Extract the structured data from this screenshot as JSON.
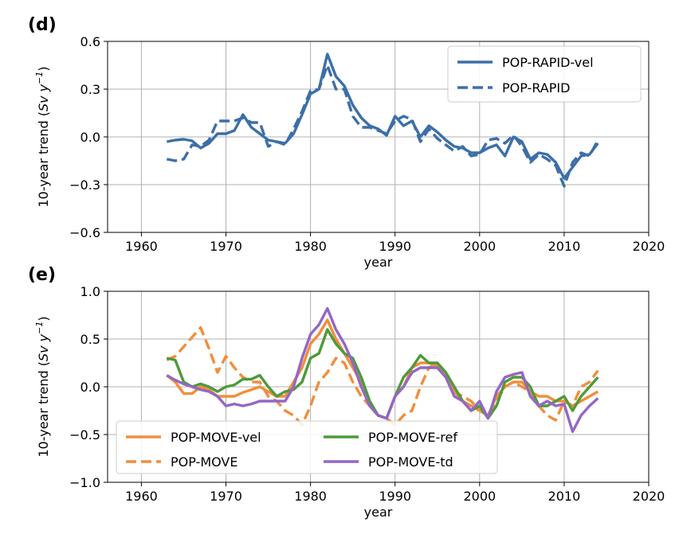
{
  "chart_data": [
    {
      "type": "line",
      "panel_label": "(d)",
      "xlabel": "year",
      "ylabel": "10-year trend (Sv y⁻¹)",
      "ylabel_parts": [
        "10-year trend (",
        "Sv y",
        "−1",
        ")"
      ],
      "xlim": [
        1956,
        2020
      ],
      "ylim": [
        -0.6,
        0.6
      ],
      "xticks": [
        1960,
        1970,
        1980,
        1990,
        2000,
        2010,
        2020
      ],
      "yticks": [
        -0.6,
        -0.3,
        0.0,
        0.3,
        0.6
      ],
      "ytick_labels": [
        "−0.6",
        "−0.3",
        "0.0",
        "0.3",
        "0.6"
      ],
      "grid": true,
      "legend_position": "top-right",
      "x": [
        1963,
        1964,
        1965,
        1966,
        1967,
        1968,
        1969,
        1970,
        1971,
        1972,
        1973,
        1974,
        1975,
        1976,
        1977,
        1978,
        1979,
        1980,
        1981,
        1982,
        1983,
        1984,
        1985,
        1986,
        1987,
        1988,
        1989,
        1990,
        1991,
        1992,
        1993,
        1994,
        1995,
        1996,
        1997,
        1998,
        1999,
        2000,
        2001,
        2002,
        2003,
        2004,
        2005,
        2006,
        2007,
        2008,
        2009,
        2010,
        2011,
        2012,
        2013,
        2014
      ],
      "series": [
        {
          "name": "POP-RAPID-vel",
          "color": "#3c6fa8",
          "dash": "solid",
          "values": [
            -0.03,
            -0.02,
            -0.015,
            -0.025,
            -0.07,
            -0.04,
            0.02,
            0.02,
            0.04,
            0.14,
            0.06,
            0.02,
            -0.02,
            -0.03,
            -0.04,
            0.02,
            0.14,
            0.27,
            0.3,
            0.52,
            0.38,
            0.32,
            0.2,
            0.12,
            0.07,
            0.05,
            0.01,
            0.13,
            0.07,
            0.1,
            0.0,
            0.07,
            0.03,
            -0.02,
            -0.06,
            -0.07,
            -0.1,
            -0.1,
            -0.07,
            -0.05,
            -0.12,
            0.0,
            -0.03,
            -0.14,
            -0.1,
            -0.11,
            -0.16,
            -0.26,
            -0.19,
            -0.12,
            -0.11,
            -0.04
          ]
        },
        {
          "name": "POP-RAPID",
          "color": "#3c6fa8",
          "dash": "dashed",
          "values": [
            -0.14,
            -0.15,
            -0.14,
            -0.05,
            -0.06,
            -0.02,
            0.1,
            0.1,
            0.1,
            0.12,
            0.09,
            0.09,
            -0.06,
            -0.03,
            -0.05,
            0.05,
            0.16,
            0.29,
            0.3,
            0.45,
            0.3,
            0.3,
            0.13,
            0.06,
            0.06,
            0.04,
            0.02,
            0.1,
            0.13,
            0.11,
            -0.03,
            0.05,
            -0.01,
            -0.05,
            -0.09,
            -0.06,
            -0.12,
            -0.11,
            -0.02,
            -0.01,
            -0.04,
            0.01,
            -0.06,
            -0.16,
            -0.11,
            -0.14,
            -0.18,
            -0.31,
            -0.16,
            -0.1,
            -0.12,
            -0.02
          ]
        }
      ]
    },
    {
      "type": "line",
      "panel_label": "(e)",
      "xlabel": "year",
      "ylabel": "10-year trend (Sv y⁻¹)",
      "ylabel_parts": [
        "10-year trend (",
        "Sv y",
        "−1",
        ")"
      ],
      "xlim": [
        1956,
        2020
      ],
      "ylim": [
        -1.0,
        1.0
      ],
      "xticks": [
        1960,
        1970,
        1980,
        1990,
        2000,
        2010,
        2020
      ],
      "yticks": [
        -1.0,
        -0.5,
        0.0,
        0.5,
        1.0
      ],
      "ytick_labels": [
        "−1.0",
        "−0.5",
        "0.0",
        "0.5",
        "1.0"
      ],
      "grid": true,
      "legend_position": "bottom-left",
      "x": [
        1963,
        1964,
        1965,
        1966,
        1967,
        1968,
        1969,
        1970,
        1971,
        1972,
        1973,
        1974,
        1975,
        1976,
        1977,
        1978,
        1979,
        1980,
        1981,
        1982,
        1983,
        1984,
        1985,
        1986,
        1987,
        1988,
        1989,
        1990,
        1991,
        1992,
        1993,
        1994,
        1995,
        1996,
        1997,
        1998,
        1999,
        2000,
        2001,
        2002,
        2003,
        2004,
        2005,
        2006,
        2007,
        2008,
        2009,
        2010,
        2011,
        2012,
        2013,
        2014
      ],
      "series": [
        {
          "name": "POP-MOVE-vel",
          "color": "#f28e3a",
          "dash": "solid",
          "values": [
            0.12,
            0.05,
            -0.07,
            -0.07,
            0.0,
            -0.03,
            -0.1,
            -0.1,
            -0.1,
            -0.06,
            -0.03,
            0.0,
            -0.05,
            -0.1,
            -0.1,
            0.05,
            0.2,
            0.45,
            0.55,
            0.7,
            0.5,
            0.35,
            0.2,
            0.05,
            -0.2,
            -0.3,
            -0.33,
            -0.1,
            0.0,
            0.2,
            0.25,
            0.25,
            0.22,
            0.1,
            -0.05,
            -0.15,
            -0.2,
            -0.25,
            -0.3,
            -0.1,
            0.0,
            0.05,
            0.05,
            -0.05,
            -0.1,
            -0.1,
            -0.15,
            -0.15,
            -0.2,
            -0.15,
            -0.1,
            -0.05
          ]
        },
        {
          "name": "POP-MOVE",
          "color": "#f28e3a",
          "dash": "dashed",
          "values": [
            0.28,
            0.32,
            0.42,
            0.52,
            0.62,
            0.4,
            0.15,
            0.32,
            0.2,
            0.1,
            0.05,
            0.05,
            -0.1,
            -0.15,
            -0.25,
            -0.3,
            -0.4,
            -0.2,
            0.05,
            0.15,
            0.3,
            0.25,
            0.05,
            -0.1,
            -0.2,
            -0.3,
            -0.33,
            -0.4,
            -0.3,
            -0.25,
            0.0,
            0.2,
            0.25,
            0.15,
            -0.05,
            -0.1,
            -0.15,
            -0.25,
            -0.3,
            -0.15,
            0.0,
            0.05,
            0.0,
            -0.05,
            -0.2,
            -0.3,
            -0.35,
            -0.15,
            -0.2,
            0.0,
            0.05,
            0.17
          ]
        },
        {
          "name": "POP-MOVE-ref",
          "color": "#4e9a3b",
          "dash": "solid",
          "values": [
            0.3,
            0.28,
            0.05,
            0.0,
            0.03,
            0.0,
            -0.05,
            0.0,
            0.02,
            0.08,
            0.08,
            0.12,
            0.0,
            -0.1,
            -0.05,
            -0.03,
            0.05,
            0.3,
            0.35,
            0.6,
            0.45,
            0.35,
            0.3,
            0.1,
            -0.15,
            -0.3,
            -0.33,
            -0.1,
            0.1,
            0.2,
            0.33,
            0.25,
            0.25,
            0.15,
            0.0,
            -0.15,
            -0.25,
            -0.2,
            -0.33,
            -0.2,
            0.05,
            0.1,
            0.1,
            0.0,
            -0.2,
            -0.2,
            -0.15,
            -0.1,
            -0.25,
            -0.1,
            0.0,
            0.1
          ]
        },
        {
          "name": "POP-MOVE-td",
          "color": "#9467c5",
          "dash": "solid",
          "values": [
            0.12,
            0.07,
            0.03,
            0.0,
            -0.03,
            -0.05,
            -0.1,
            -0.2,
            -0.18,
            -0.2,
            -0.18,
            -0.15,
            -0.15,
            -0.15,
            -0.15,
            0.0,
            0.3,
            0.55,
            0.65,
            0.82,
            0.6,
            0.45,
            0.25,
            0.0,
            -0.2,
            -0.3,
            -0.33,
            -0.1,
            0.0,
            0.15,
            0.2,
            0.2,
            0.2,
            0.1,
            -0.1,
            -0.15,
            -0.25,
            -0.15,
            -0.33,
            -0.05,
            0.1,
            0.13,
            0.15,
            -0.1,
            -0.2,
            -0.15,
            -0.2,
            -0.18,
            -0.47,
            -0.3,
            -0.2,
            -0.12
          ]
        }
      ]
    }
  ]
}
